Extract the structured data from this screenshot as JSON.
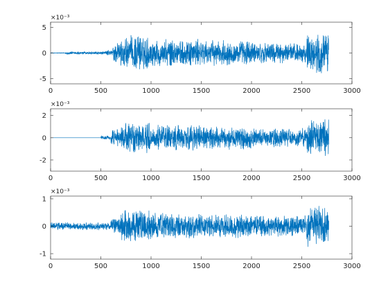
{
  "figure": {
    "background": "#ffffff",
    "axes_color": "#262626",
    "line_color": "#0072bd"
  },
  "chart_data": [
    {
      "type": "line",
      "title": "",
      "xlabel": "",
      "ylabel": "",
      "xlim": [
        0,
        3000
      ],
      "ylim": [
        -0.006,
        0.006
      ],
      "x_ticks": [
        0,
        500,
        1000,
        1500,
        2000,
        2500,
        3000
      ],
      "y_ticks": [
        -0.005,
        0,
        0.005
      ],
      "y_tick_labels": [
        "-5",
        "0",
        "5"
      ],
      "y_exponent_label": "×10⁻³",
      "grid": false,
      "series": [
        {
          "color": "#0072bd",
          "n_samples": 2770,
          "segments": [
            {
              "from": 0,
              "to": 150,
              "amplitude": 5e-05
            },
            {
              "from": 150,
              "to": 550,
              "amplitude": 0.0003
            },
            {
              "from": 550,
              "to": 620,
              "amplitude": 0.0006
            },
            {
              "from": 620,
              "to": 700,
              "amplitude": 0.0022
            },
            {
              "from": 700,
              "to": 1000,
              "amplitude": 0.0035
            },
            {
              "from": 1000,
              "to": 1500,
              "amplitude": 0.0028
            },
            {
              "from": 1500,
              "to": 2000,
              "amplitude": 0.0026
            },
            {
              "from": 2000,
              "to": 2300,
              "amplitude": 0.0022
            },
            {
              "from": 2300,
              "to": 2550,
              "amplitude": 0.002
            },
            {
              "from": 2550,
              "to": 2770,
              "amplitude": 0.004
            }
          ]
        }
      ]
    },
    {
      "type": "line",
      "title": "",
      "xlabel": "",
      "ylabel": "",
      "xlim": [
        0,
        3000
      ],
      "ylim": [
        -0.003,
        0.0026
      ],
      "x_ticks": [
        0,
        500,
        1000,
        1500,
        2000,
        2500,
        3000
      ],
      "y_ticks": [
        -0.002,
        0,
        0.002
      ],
      "y_tick_labels": [
        "-2",
        "0",
        "2"
      ],
      "y_exponent_label": "×10⁻³",
      "grid": false,
      "series": [
        {
          "color": "#0072bd",
          "n_samples": 2770,
          "segments": [
            {
              "from": 0,
              "to": 500,
              "amplitude": 0.0
            },
            {
              "from": 500,
              "to": 600,
              "amplitude": 0.0002
            },
            {
              "from": 600,
              "to": 700,
              "amplitude": 0.0008
            },
            {
              "from": 700,
              "to": 1000,
              "amplitude": 0.0014
            },
            {
              "from": 1000,
              "to": 1500,
              "amplitude": 0.0012
            },
            {
              "from": 1500,
              "to": 2000,
              "amplitude": 0.0011
            },
            {
              "from": 2000,
              "to": 2300,
              "amplitude": 0.0009
            },
            {
              "from": 2300,
              "to": 2550,
              "amplitude": 0.0009
            },
            {
              "from": 2550,
              "to": 2770,
              "amplitude": 0.0018
            }
          ]
        }
      ]
    },
    {
      "type": "line",
      "title": "",
      "xlabel": "",
      "ylabel": "",
      "xlim": [
        0,
        3000
      ],
      "ylim": [
        -0.0012,
        0.0011
      ],
      "x_ticks": [
        0,
        500,
        1000,
        1500,
        2000,
        2500,
        3000
      ],
      "y_ticks": [
        -0.001,
        0,
        0.001
      ],
      "y_tick_labels": [
        "-1",
        "0",
        "1"
      ],
      "y_exponent_label": "×10⁻³",
      "grid": false,
      "series": [
        {
          "color": "#0072bd",
          "n_samples": 2770,
          "segments": [
            {
              "from": 0,
              "to": 600,
              "amplitude": 0.00015
            },
            {
              "from": 600,
              "to": 700,
              "amplitude": 0.0003
            },
            {
              "from": 700,
              "to": 1000,
              "amplitude": 0.0006
            },
            {
              "from": 1000,
              "to": 1500,
              "amplitude": 0.0005
            },
            {
              "from": 1500,
              "to": 2000,
              "amplitude": 0.00045
            },
            {
              "from": 2000,
              "to": 2300,
              "amplitude": 0.0004
            },
            {
              "from": 2300,
              "to": 2550,
              "amplitude": 0.0004
            },
            {
              "from": 2550,
              "to": 2770,
              "amplitude": 0.0008
            }
          ]
        }
      ]
    }
  ]
}
